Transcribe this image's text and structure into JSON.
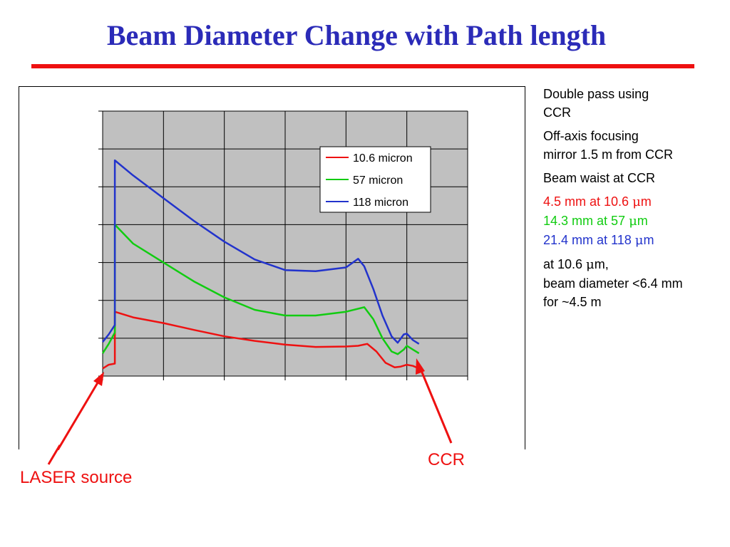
{
  "title": "Beam Diameter Change with Path length",
  "colors": {
    "title": "#2b2bb8",
    "accent_red": "#ee1111",
    "series_10_6": "#ee1111",
    "series_57": "#11cc11",
    "series_118": "#2233cc",
    "plot_background": "#c0c0c0"
  },
  "notes": {
    "line1a": "Double pass using",
    "line1b": "CCR",
    "line2a": "Off-axis focusing",
    "line2b": "mirror 1.5 m from CCR",
    "line3": "Beam waist at CCR",
    "waist_10_6_pre": "4.5 mm at 10.6 ",
    "waist_57_pre": "14.3 mm at 57 ",
    "waist_118_pre": "21.4 mm at 118 ",
    "mu": "μ",
    "m_suffix": "m",
    "line5a_pre": "at 10.6 ",
    "line5a_post": "m,",
    "line5b": "beam diameter <6.4 mm",
    "line5c": "for ~4.5 m"
  },
  "annotations": {
    "laser_source": "LASER source",
    "ccr": "CCR"
  },
  "chart_data": {
    "type": "line",
    "title": "",
    "xlabel": "",
    "ylabel": "",
    "xlim": [
      0,
      6
    ],
    "ylim": [
      0,
      7
    ],
    "grid": true,
    "x_gridlines": 6,
    "y_gridlines": 7,
    "tick_labels_shown": false,
    "legend_position": "top-right",
    "series": [
      {
        "name": "10.6 micron",
        "color": "#ee1111",
        "points": [
          [
            0.0,
            0.2
          ],
          [
            0.1,
            0.3
          ],
          [
            0.2,
            0.33
          ],
          [
            0.2,
            1.7
          ],
          [
            0.5,
            1.55
          ],
          [
            1.0,
            1.4
          ],
          [
            1.5,
            1.22
          ],
          [
            2.0,
            1.05
          ],
          [
            2.5,
            0.93
          ],
          [
            3.0,
            0.83
          ],
          [
            3.5,
            0.77
          ],
          [
            4.0,
            0.78
          ],
          [
            4.2,
            0.8
          ],
          [
            4.35,
            0.85
          ],
          [
            4.5,
            0.65
          ],
          [
            4.65,
            0.35
          ],
          [
            4.8,
            0.23
          ],
          [
            4.9,
            0.25
          ],
          [
            5.0,
            0.3
          ],
          [
            5.1,
            0.27
          ],
          [
            5.2,
            0.2
          ]
        ]
      },
      {
        "name": "57 micron",
        "color": "#11cc11",
        "points": [
          [
            0.0,
            0.6
          ],
          [
            0.1,
            0.85
          ],
          [
            0.2,
            1.15
          ],
          [
            0.2,
            4.0
          ],
          [
            0.5,
            3.5
          ],
          [
            1.0,
            3.0
          ],
          [
            1.5,
            2.5
          ],
          [
            2.0,
            2.08
          ],
          [
            2.5,
            1.75
          ],
          [
            3.0,
            1.6
          ],
          [
            3.5,
            1.6
          ],
          [
            4.0,
            1.7
          ],
          [
            4.3,
            1.82
          ],
          [
            4.45,
            1.5
          ],
          [
            4.6,
            1.0
          ],
          [
            4.75,
            0.65
          ],
          [
            4.85,
            0.58
          ],
          [
            4.95,
            0.7
          ],
          [
            5.0,
            0.8
          ],
          [
            5.1,
            0.7
          ],
          [
            5.2,
            0.6
          ]
        ]
      },
      {
        "name": "118 micron",
        "color": "#2233cc",
        "points": [
          [
            0.0,
            0.9
          ],
          [
            0.1,
            1.1
          ],
          [
            0.2,
            1.35
          ],
          [
            0.2,
            5.7
          ],
          [
            0.5,
            5.3
          ],
          [
            1.0,
            4.7
          ],
          [
            1.5,
            4.1
          ],
          [
            2.0,
            3.55
          ],
          [
            2.5,
            3.08
          ],
          [
            3.0,
            2.8
          ],
          [
            3.5,
            2.77
          ],
          [
            4.0,
            2.87
          ],
          [
            4.2,
            3.1
          ],
          [
            4.3,
            2.9
          ],
          [
            4.45,
            2.3
          ],
          [
            4.6,
            1.6
          ],
          [
            4.75,
            1.05
          ],
          [
            4.85,
            0.88
          ],
          [
            4.95,
            1.1
          ],
          [
            5.0,
            1.12
          ],
          [
            5.1,
            0.95
          ],
          [
            5.2,
            0.85
          ]
        ]
      }
    ]
  }
}
